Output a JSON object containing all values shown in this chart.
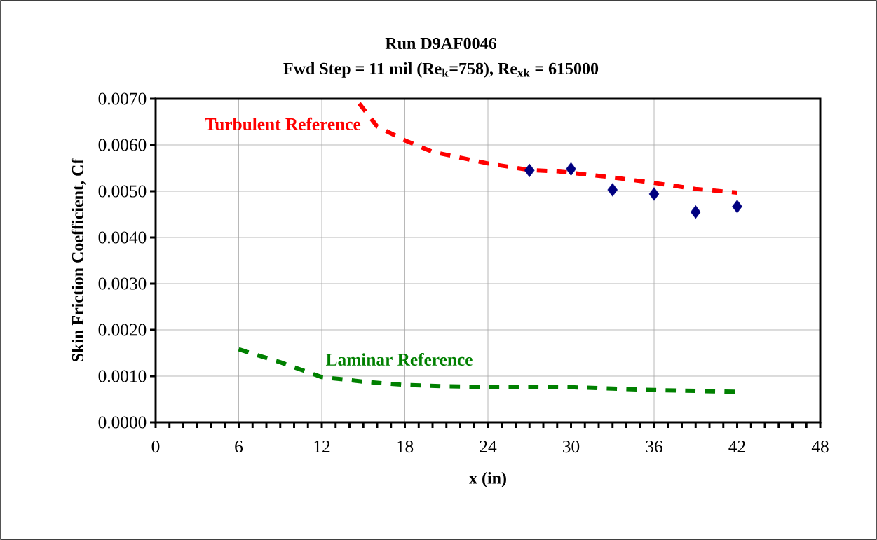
{
  "chart_data": {
    "type": "line",
    "title": "Run D9AF0046",
    "subtitle": "Fwd Step = 11 mil (Re$_{k}$=758), Re$_{xk}$ = 615000",
    "xlabel": "x (in)",
    "ylabel": "Skin Friction Coefficient, Cf",
    "xlim": [
      0,
      48
    ],
    "xticks": [
      0,
      6,
      12,
      18,
      24,
      30,
      36,
      42,
      48
    ],
    "ylim": [
      0,
      0.007
    ],
    "yticks": [
      {
        "value": 0,
        "label": "0.0000"
      },
      {
        "value": 0.001,
        "label": "0.0010"
      },
      {
        "value": 0.002,
        "label": "0.0020"
      },
      {
        "value": 0.003,
        "label": "0.0030"
      },
      {
        "value": 0.004,
        "label": "0.0040"
      },
      {
        "value": 0.005,
        "label": "0.0050"
      },
      {
        "value": 0.006,
        "label": "0.0060"
      },
      {
        "value": 0.007,
        "label": "0.0070"
      }
    ],
    "grid": true,
    "series": [
      {
        "name": "Turbulent Reference",
        "line_style": "dashed",
        "marker": "none",
        "color": "#ff0000",
        "x": [
          14.7,
          16,
          18,
          20,
          24,
          27,
          29,
          33,
          36,
          39,
          42
        ],
        "values": [
          0.0069,
          0.0064,
          0.0061,
          0.00585,
          0.0056,
          0.00546,
          0.00543,
          0.0053,
          0.00518,
          0.00505,
          0.00497
        ]
      },
      {
        "name": "Laminar Reference",
        "line_style": "dashed",
        "marker": "none",
        "color": "#008000",
        "x": [
          6,
          9,
          12,
          15,
          18,
          21,
          24,
          27,
          30,
          33,
          36,
          39,
          42
        ],
        "values": [
          0.00158,
          0.0013,
          0.00098,
          0.00088,
          0.00081,
          0.00078,
          0.00077,
          0.00077,
          0.00076,
          0.00073,
          0.0007,
          0.00068,
          0.00066
        ]
      },
      {
        "type": "scatter",
        "marker": "diamond",
        "color": "#000080",
        "x": [
          27,
          30,
          33,
          36,
          39,
          42
        ],
        "values": [
          0.00545,
          0.00548,
          0.00503,
          0.00494,
          0.00455,
          0.00467
        ]
      }
    ]
  }
}
